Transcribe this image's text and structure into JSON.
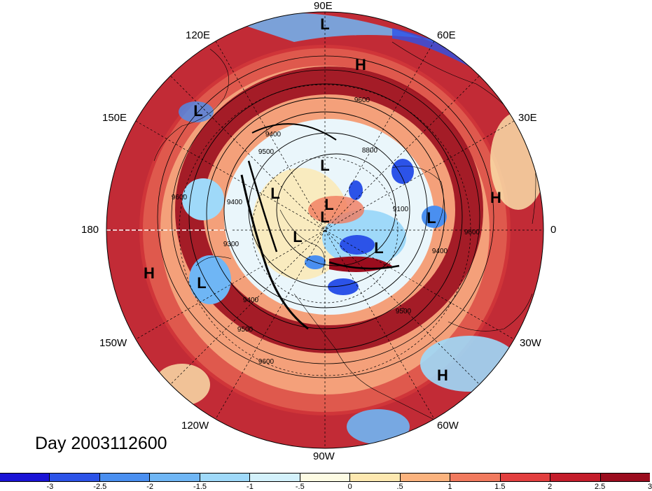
{
  "map": {
    "projection": "north-polar-stereographic",
    "longitude_labels": [
      "90E",
      "120E",
      "60E",
      "150E",
      "30E",
      "180",
      "0",
      "150W",
      "30W",
      "120W",
      "60W",
      "90W"
    ],
    "pressure_centers": [
      {
        "label": "L"
      },
      {
        "label": "H"
      },
      {
        "label": "L"
      },
      {
        "label": "L"
      },
      {
        "label": "H"
      },
      {
        "label": "L"
      },
      {
        "label": "L"
      },
      {
        "label": "L"
      },
      {
        "label": "L"
      },
      {
        "label": "L"
      },
      {
        "label": "L"
      },
      {
        "label": "H"
      },
      {
        "label": "L"
      },
      {
        "label": "H"
      }
    ],
    "contour_labels": [
      "9600",
      "9600",
      "9500",
      "9400",
      "9300",
      "9400",
      "9500",
      "9600",
      "9400",
      "9500",
      "9400",
      "9600",
      "9100",
      "8800"
    ]
  },
  "day_label": "Day 2003112600",
  "colorbar": {
    "colors": [
      "#1a14d6",
      "#2c53e8",
      "#4a8ff0",
      "#6fb6f5",
      "#9fd9f9",
      "#d3f1fb",
      "#fdfbe3",
      "#fde8b0",
      "#fbb37e",
      "#f17a5e",
      "#e23f3f",
      "#c41d2b",
      "#9b0d1e"
    ],
    "ticks": [
      "-3",
      "-2.5",
      "-2",
      "-1.5",
      "-1",
      "-.5",
      "0",
      ".5",
      "1",
      "1.5",
      "2",
      "2.5",
      "3"
    ]
  }
}
